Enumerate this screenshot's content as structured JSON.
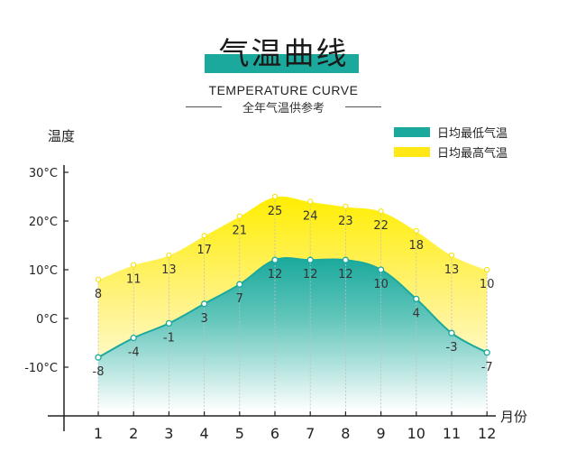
{
  "title": "气温曲线",
  "subtitle_en": "TEMPERATURE CURVE",
  "subtitle_cn": "全年气温供参考",
  "colors": {
    "teal": "#1aa99c",
    "yellow": "#ffe815",
    "axis": "#222222"
  },
  "chart_data": {
    "type": "area",
    "ylabel": "温度",
    "xlabel": "月份",
    "y_ticks": [
      "30°C",
      "20°C",
      "10°C",
      "0°C",
      "-10°C"
    ],
    "ylim": [
      -20,
      35
    ],
    "categories": [
      "1",
      "2",
      "3",
      "4",
      "5",
      "6",
      "7",
      "8",
      "9",
      "10",
      "11",
      "12"
    ],
    "series": [
      {
        "name": "日均最低气温",
        "color": "#1aa99c",
        "values": [
          -8,
          -4,
          -1,
          3,
          7,
          12,
          12,
          12,
          10,
          4,
          -3,
          -7
        ]
      },
      {
        "name": "日均最高气温",
        "color": "#ffe815",
        "values": [
          8,
          11,
          13,
          17,
          21,
          25,
          24,
          23,
          22,
          18,
          13,
          10
        ]
      }
    ],
    "legend_position": "top-right"
  }
}
